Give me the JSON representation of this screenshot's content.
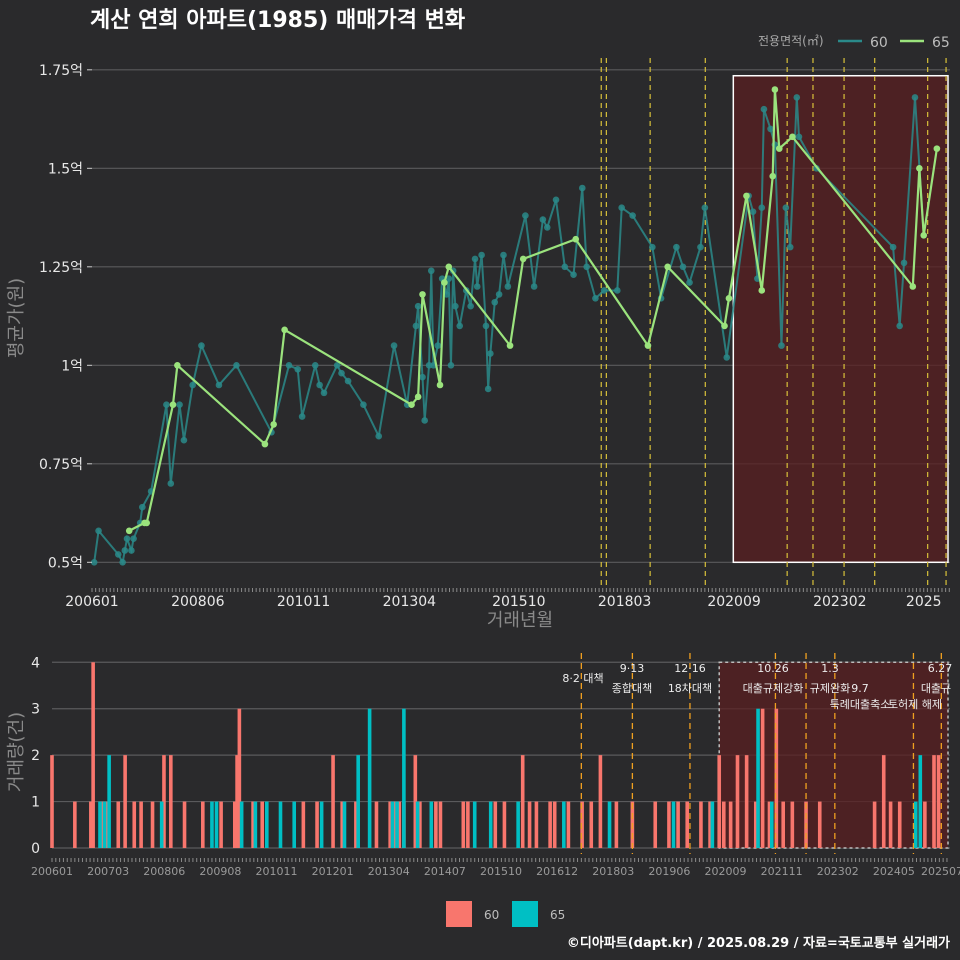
{
  "title": "계산 연희 아파트(1985) 매매가격 변화",
  "source": "©디아파트(dapt.kr) / 2025.08.29 / 자료=국토교통부 실거래가",
  "colors": {
    "bg": "#2a2a2c",
    "teal": "#2a8a8a",
    "green": "#9be37d",
    "sale": "#f8766d",
    "sale2": "#00bfc4",
    "vline": "#d8c13a",
    "vline2": "#f0a020",
    "highlight": "#5a1f20"
  },
  "chart_data": [
    {
      "type": "line",
      "title": "계산 연희 아파트(1985) 매매가격 변화",
      "xlabel": "거래년월",
      "ylabel": "평균가(원)",
      "ylim": [
        0.45,
        1.78
      ],
      "yticks": [
        0.5,
        0.75,
        1.0,
        1.25,
        1.5,
        1.75
      ],
      "ytick_labels": [
        "0.5억",
        "0.75억",
        "1억",
        "1.25억",
        "1.5억",
        "1.75억"
      ],
      "xticks": [
        2006.0,
        2008.417,
        2010.833,
        2013.25,
        2015.75,
        2018.167,
        2020.667,
        2023.083,
        2025.0
      ],
      "xtick_labels": [
        "200601",
        "200806",
        "201011",
        "201304",
        "201510",
        "201803",
        "202009",
        "202302",
        "2025"
      ],
      "legend_title": "전용면적(㎡)",
      "legend_items": [
        "60",
        "65"
      ],
      "legend_position": "top-right",
      "series": [
        {
          "name": "60",
          "points": [
            [
              2006.05,
              0.5
            ],
            [
              2006.15,
              0.58
            ],
            [
              2006.6,
              0.52
            ],
            [
              2006.7,
              0.5
            ],
            [
              2006.75,
              0.53
            ],
            [
              2006.8,
              0.56
            ],
            [
              2006.9,
              0.53
            ],
            [
              2006.95,
              0.56
            ],
            [
              2007.1,
              0.6
            ],
            [
              2007.15,
              0.64
            ],
            [
              2007.35,
              0.68
            ],
            [
              2007.7,
              0.9
            ],
            [
              2007.8,
              0.7
            ],
            [
              2008.0,
              0.9
            ],
            [
              2008.1,
              0.81
            ],
            [
              2008.3,
              0.95
            ],
            [
              2008.5,
              1.05
            ],
            [
              2008.9,
              0.95
            ],
            [
              2009.3,
              1.0
            ],
            [
              2010.1,
              0.83
            ],
            [
              2010.5,
              1.0
            ],
            [
              2010.7,
              0.99
            ],
            [
              2010.8,
              0.87
            ],
            [
              2011.1,
              1.0
            ],
            [
              2011.2,
              0.95
            ],
            [
              2011.3,
              0.93
            ],
            [
              2011.6,
              1.0
            ],
            [
              2011.7,
              0.98
            ],
            [
              2011.85,
              0.96
            ],
            [
              2012.2,
              0.9
            ],
            [
              2012.55,
              0.82
            ],
            [
              2012.9,
              1.05
            ],
            [
              2013.2,
              0.9
            ],
            [
              2013.4,
              1.1
            ],
            [
              2013.45,
              1.15
            ],
            [
              2013.55,
              0.97
            ],
            [
              2013.6,
              0.86
            ],
            [
              2013.7,
              1.0
            ],
            [
              2013.75,
              1.24
            ],
            [
              2013.8,
              1.0
            ],
            [
              2013.9,
              1.05
            ],
            [
              2014.0,
              1.22
            ],
            [
              2014.1,
              1.18
            ],
            [
              2014.15,
              1.22
            ],
            [
              2014.2,
              1.0
            ],
            [
              2014.25,
              1.24
            ],
            [
              2014.3,
              1.15
            ],
            [
              2014.4,
              1.1
            ],
            [
              2014.55,
              1.19
            ],
            [
              2014.65,
              1.15
            ],
            [
              2014.75,
              1.27
            ],
            [
              2014.8,
              1.2
            ],
            [
              2014.9,
              1.28
            ],
            [
              2015.0,
              1.1
            ],
            [
              2015.05,
              0.94
            ],
            [
              2015.1,
              1.03
            ],
            [
              2015.2,
              1.16
            ],
            [
              2015.3,
              1.18
            ],
            [
              2015.4,
              1.28
            ],
            [
              2015.5,
              1.2
            ],
            [
              2015.9,
              1.38
            ],
            [
              2016.1,
              1.2
            ],
            [
              2016.3,
              1.37
            ],
            [
              2016.4,
              1.35
            ],
            [
              2016.6,
              1.42
            ],
            [
              2016.8,
              1.25
            ],
            [
              2017.0,
              1.23
            ],
            [
              2017.2,
              1.45
            ],
            [
              2017.3,
              1.25
            ],
            [
              2017.5,
              1.17
            ],
            [
              2017.7,
              1.19
            ],
            [
              2018.0,
              1.19
            ],
            [
              2018.1,
              1.4
            ],
            [
              2018.35,
              1.38
            ],
            [
              2018.8,
              1.3
            ],
            [
              2019.0,
              1.17
            ],
            [
              2019.35,
              1.3
            ],
            [
              2019.5,
              1.25
            ],
            [
              2019.65,
              1.21
            ],
            [
              2019.9,
              1.3
            ],
            [
              2020.0,
              1.4
            ],
            [
              2020.5,
              1.02
            ],
            [
              2021.0,
              1.43
            ],
            [
              2021.1,
              1.39
            ],
            [
              2021.2,
              1.22
            ],
            [
              2021.3,
              1.4
            ],
            [
              2021.35,
              1.65
            ],
            [
              2021.5,
              1.6
            ],
            [
              2021.6,
              1.56
            ],
            [
              2021.75,
              1.05
            ],
            [
              2021.85,
              1.4
            ],
            [
              2021.95,
              1.3
            ],
            [
              2022.1,
              1.68
            ],
            [
              2022.15,
              1.58
            ],
            [
              2022.55,
              1.5
            ],
            [
              2024.3,
              1.3
            ],
            [
              2024.45,
              1.1
            ],
            [
              2024.55,
              1.26
            ],
            [
              2024.8,
              1.68
            ],
            [
              2025.0,
              1.33
            ]
          ]
        },
        {
          "name": "65",
          "points": [
            [
              2006.85,
              0.58
            ],
            [
              2007.2,
              0.6
            ],
            [
              2007.25,
              0.6
            ],
            [
              2007.85,
              0.9
            ],
            [
              2007.95,
              1.0
            ],
            [
              2009.95,
              0.8
            ],
            [
              2010.15,
              0.85
            ],
            [
              2010.4,
              1.09
            ],
            [
              2013.3,
              0.9
            ],
            [
              2013.45,
              0.92
            ],
            [
              2013.55,
              1.18
            ],
            [
              2013.95,
              0.95
            ],
            [
              2014.05,
              1.21
            ],
            [
              2014.15,
              1.25
            ],
            [
              2015.55,
              1.05
            ],
            [
              2015.85,
              1.27
            ],
            [
              2017.05,
              1.32
            ],
            [
              2018.7,
              1.05
            ],
            [
              2019.15,
              1.25
            ],
            [
              2020.45,
              1.1
            ],
            [
              2020.55,
              1.17
            ],
            [
              2020.95,
              1.43
            ],
            [
              2021.3,
              1.19
            ],
            [
              2021.55,
              1.48
            ],
            [
              2021.6,
              1.7
            ],
            [
              2021.7,
              1.55
            ],
            [
              2022.0,
              1.58
            ],
            [
              2024.75,
              1.2
            ],
            [
              2024.9,
              1.5
            ],
            [
              2025.0,
              1.33
            ],
            [
              2025.3,
              1.55
            ]
          ]
        }
      ],
      "policy_lines": [
        2017.583,
        2017.7,
        2018.7,
        2019.96,
        2021.83,
        2022.42,
        2023.13,
        2023.83,
        2025.04,
        2025.46
      ],
      "highlight_range": [
        2020.65,
        2025.6
      ]
    },
    {
      "type": "bar",
      "xlabel": "",
      "ylabel": "거래량(건)",
      "ylim": [
        0,
        4.2
      ],
      "yticks": [
        0,
        1,
        2,
        3,
        4
      ],
      "ytick_labels": [
        "0",
        "1",
        "2",
        "3",
        "4"
      ],
      "xtick_labels": [
        "200601",
        "200703",
        "200806",
        "200908",
        "201011",
        "201201",
        "201304",
        "201407",
        "201510",
        "201612",
        "201803",
        "201906",
        "202009",
        "202111",
        "202302",
        "202405",
        "202507"
      ],
      "legend_items": [
        "60",
        "65"
      ],
      "legend_position": "bottom",
      "series": [
        {
          "name": "60",
          "bars": [
            [
              2006.0,
              2
            ],
            [
              2006.5,
              1
            ],
            [
              2006.85,
              1
            ],
            [
              2006.9,
              4
            ],
            [
              2007.1,
              1
            ],
            [
              2007.2,
              1
            ],
            [
              2007.45,
              1
            ],
            [
              2007.6,
              2
            ],
            [
              2007.8,
              1
            ],
            [
              2007.95,
              1
            ],
            [
              2008.2,
              1
            ],
            [
              2008.45,
              2
            ],
            [
              2008.6,
              2
            ],
            [
              2008.9,
              1
            ],
            [
              2009.3,
              1
            ],
            [
              2009.7,
              1
            ],
            [
              2010.0,
              1
            ],
            [
              2010.05,
              2
            ],
            [
              2010.1,
              3
            ],
            [
              2010.4,
              1
            ],
            [
              2010.6,
              1
            ],
            [
              2011.5,
              1
            ],
            [
              2011.8,
              1
            ],
            [
              2012.15,
              2
            ],
            [
              2012.35,
              1
            ],
            [
              2012.65,
              1
            ],
            [
              2013.1,
              1
            ],
            [
              2013.4,
              1
            ],
            [
              2013.5,
              1
            ],
            [
              2013.6,
              1
            ],
            [
              2013.7,
              1
            ],
            [
              2013.95,
              2
            ],
            [
              2014.05,
              1
            ],
            [
              2014.4,
              1
            ],
            [
              2014.5,
              1
            ],
            [
              2015.0,
              1
            ],
            [
              2015.1,
              1
            ],
            [
              2015.7,
              1
            ],
            [
              2015.9,
              1
            ],
            [
              2016.3,
              2
            ],
            [
              2016.45,
              1
            ],
            [
              2016.6,
              1
            ],
            [
              2016.9,
              1
            ],
            [
              2017.0,
              1
            ],
            [
              2017.3,
              1
            ],
            [
              2017.6,
              1
            ],
            [
              2017.8,
              1
            ],
            [
              2018.0,
              2
            ],
            [
              2018.35,
              1
            ],
            [
              2018.7,
              1
            ],
            [
              2019.2,
              1
            ],
            [
              2019.5,
              1
            ],
            [
              2019.7,
              1
            ],
            [
              2019.9,
              1
            ],
            [
              2020.2,
              1
            ],
            [
              2020.4,
              1
            ],
            [
              2020.6,
              2
            ],
            [
              2020.7,
              1
            ],
            [
              2020.85,
              1
            ],
            [
              2021.0,
              2
            ],
            [
              2021.2,
              2
            ],
            [
              2021.4,
              1
            ],
            [
              2021.55,
              3
            ],
            [
              2021.7,
              1
            ],
            [
              2021.85,
              3
            ],
            [
              2022.0,
              1
            ],
            [
              2022.2,
              1
            ],
            [
              2022.5,
              1
            ],
            [
              2022.8,
              1
            ],
            [
              2024.0,
              1
            ],
            [
              2024.2,
              2
            ],
            [
              2024.35,
              1
            ],
            [
              2024.55,
              1
            ],
            [
              2025.1,
              1
            ],
            [
              2025.3,
              2
            ],
            [
              2025.4,
              2
            ]
          ]
        },
        {
          "name": "65",
          "bars": [
            [
              2007.05,
              1
            ],
            [
              2007.15,
              1
            ],
            [
              2007.25,
              2
            ],
            [
              2008.4,
              1
            ],
            [
              2009.5,
              1
            ],
            [
              2009.6,
              1
            ],
            [
              2010.15,
              1
            ],
            [
              2010.45,
              1
            ],
            [
              2010.7,
              1
            ],
            [
              2011.0,
              1
            ],
            [
              2011.3,
              1
            ],
            [
              2011.9,
              1
            ],
            [
              2012.4,
              1
            ],
            [
              2012.7,
              2
            ],
            [
              2012.95,
              3
            ],
            [
              2013.45,
              1
            ],
            [
              2013.55,
              1
            ],
            [
              2013.7,
              3
            ],
            [
              2014.0,
              1
            ],
            [
              2014.3,
              1
            ],
            [
              2015.25,
              1
            ],
            [
              2015.6,
              1
            ],
            [
              2016.2,
              1
            ],
            [
              2017.2,
              1
            ],
            [
              2018.2,
              1
            ],
            [
              2019.6,
              1
            ],
            [
              2020.45,
              1
            ],
            [
              2021.45,
              3
            ],
            [
              2021.75,
              1
            ],
            [
              2024.9,
              1
            ],
            [
              2025.0,
              2
            ]
          ]
        }
      ],
      "annotations": [
        {
          "date": "8·2",
          "label": "대책",
          "line1": "8·2 대책",
          "line2": ""
        },
        {
          "date": "9·13",
          "label": "종합대책"
        },
        {
          "date": "12·16",
          "label": "18차대책"
        },
        {
          "date": "10.26",
          "label": "대출규제강화"
        },
        {
          "date": "1.3",
          "label": "규제완화"
        },
        {
          "date": "9.7",
          "label": "특례대출축소"
        },
        {
          "date": "",
          "label": "토허제 해제"
        },
        {
          "date": "6.27",
          "label": "대출규"
        }
      ]
    }
  ]
}
